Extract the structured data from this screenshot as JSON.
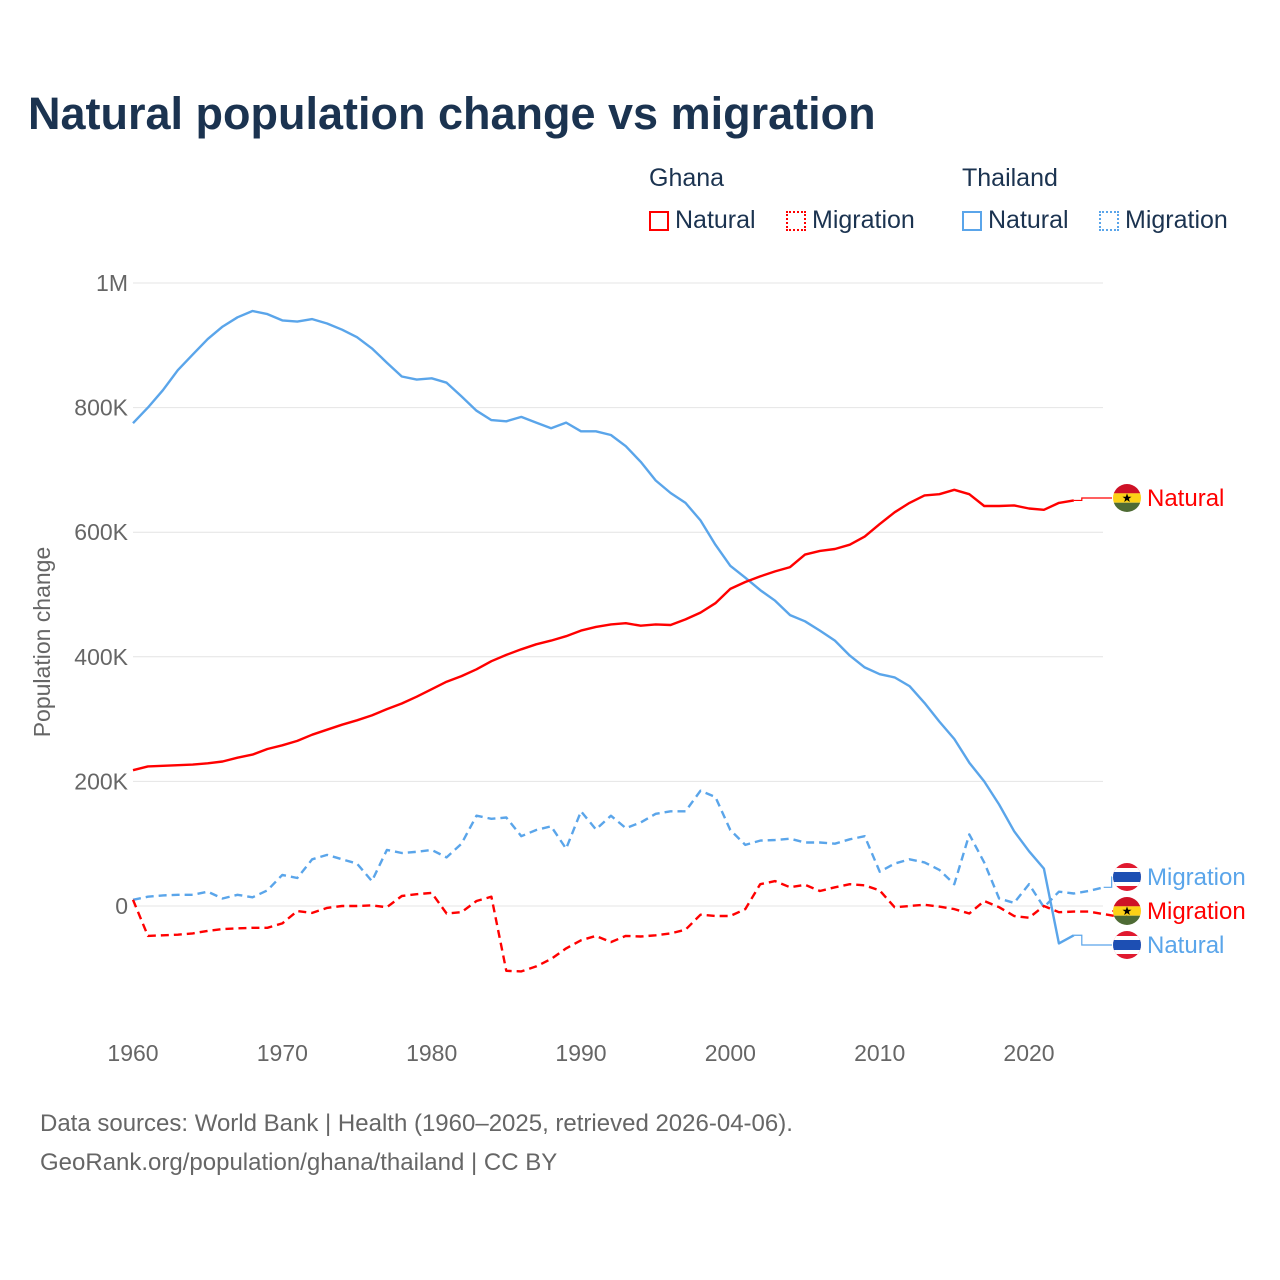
{
  "title": "Natural population change vs migration",
  "legend": {
    "groups": [
      {
        "name": "Ghana",
        "items": [
          "Natural",
          "Migration"
        ]
      },
      {
        "name": "Thailand",
        "items": [
          "Natural",
          "Migration"
        ]
      }
    ]
  },
  "sources": {
    "line1": "Data sources: World Bank | Health (1960–2025, retrieved 2026-04-06).",
    "line2": "GeoRank.org/population/ghana/thailand | CC BY"
  },
  "colors": {
    "ghana": "#ff0000",
    "thailand": "#5aa5ea",
    "text": "#1b3350",
    "axis": "#666666"
  },
  "chart_data": {
    "type": "line",
    "title": "Natural population change vs migration",
    "xlabel": "",
    "ylabel": "Population change",
    "xlim": [
      1960,
      2025
    ],
    "ylim": [
      -200000,
      1000000
    ],
    "xticks": [
      1960,
      1970,
      1980,
      1990,
      2000,
      2010,
      2020
    ],
    "xtick_labels": [
      "1960",
      "1970",
      "1980",
      "1990",
      "2000",
      "2010",
      "2020"
    ],
    "yticks": [
      0,
      200000,
      400000,
      600000,
      800000,
      1000000
    ],
    "ytick_labels": [
      "0",
      "200K",
      "400K",
      "600K",
      "800K",
      "1M"
    ],
    "grid": true,
    "legend_position": "top-right",
    "start_year": 1960,
    "unit": "thousands",
    "series": [
      {
        "name": "Ghana Natural",
        "label": "Natural",
        "country": "ghana",
        "style": "solid",
        "values": [
          218,
          224,
          225,
          226,
          227,
          229,
          232,
          238,
          243,
          252,
          258,
          265,
          275,
          283,
          291,
          298,
          306,
          316,
          325,
          336,
          348,
          360,
          369,
          380,
          393,
          403,
          412,
          420,
          426,
          433,
          442,
          448,
          452,
          454,
          450,
          452,
          451,
          460,
          471,
          486,
          509,
          520,
          529,
          537,
          544,
          564,
          570,
          573,
          580,
          593,
          613,
          632,
          647,
          659,
          661,
          668,
          661,
          642,
          642,
          643,
          638,
          636,
          647,
          651
        ]
      },
      {
        "name": "Ghana Migration",
        "label": "Migration",
        "country": "ghana",
        "style": "dashed",
        "values": [
          10,
          -48,
          -47,
          -46,
          -44,
          -40,
          -37,
          -36,
          -35,
          -35,
          -28,
          -8,
          -11,
          -3,
          0,
          0,
          1,
          -2,
          16,
          19,
          21,
          -12,
          -10,
          8,
          15,
          -104,
          -105,
          -97,
          -85,
          -68,
          -55,
          -48,
          -58,
          -48,
          -49,
          -47,
          -44,
          -38,
          -14,
          -16,
          -16,
          -5,
          35,
          40,
          30,
          34,
          24,
          30,
          35,
          33,
          25,
          -2,
          0,
          2,
          -1,
          -5,
          -12,
          8,
          -2,
          -16,
          -19,
          0,
          -10,
          -9,
          -9,
          -13,
          -17
        ]
      },
      {
        "name": "Thailand Natural",
        "label": "Natural",
        "country": "thailand",
        "style": "solid",
        "values": [
          775,
          800,
          828,
          860,
          885,
          910,
          930,
          945,
          955,
          950,
          940,
          938,
          942,
          935,
          925,
          913,
          895,
          872,
          850,
          845,
          847,
          840,
          818,
          795,
          780,
          778,
          785,
          776,
          767,
          776,
          762,
          762,
          756,
          738,
          713,
          683,
          663,
          647,
          619,
          580,
          546,
          527,
          507,
          490,
          467,
          457,
          442,
          426,
          402,
          383,
          372,
          367,
          353,
          326,
          296,
          268,
          230,
          200,
          163,
          120,
          88,
          60,
          -60,
          -47
        ]
      },
      {
        "name": "Thailand Migration",
        "label": "Migration",
        "country": "thailand",
        "style": "dashed",
        "values": [
          10,
          15,
          17,
          18,
          18,
          23,
          12,
          18,
          14,
          25,
          50,
          45,
          75,
          82,
          75,
          68,
          40,
          90,
          85,
          87,
          90,
          78,
          100,
          145,
          140,
          142,
          112,
          122,
          128,
          92,
          152,
          123,
          145,
          125,
          134,
          148,
          152,
          152,
          185,
          175,
          122,
          98,
          105,
          106,
          108,
          102,
          102,
          100,
          107,
          112,
          55,
          68,
          75,
          70,
          58,
          35,
          115,
          70,
          12,
          5,
          35,
          -2,
          23,
          20,
          24,
          30
        ]
      }
    ]
  }
}
